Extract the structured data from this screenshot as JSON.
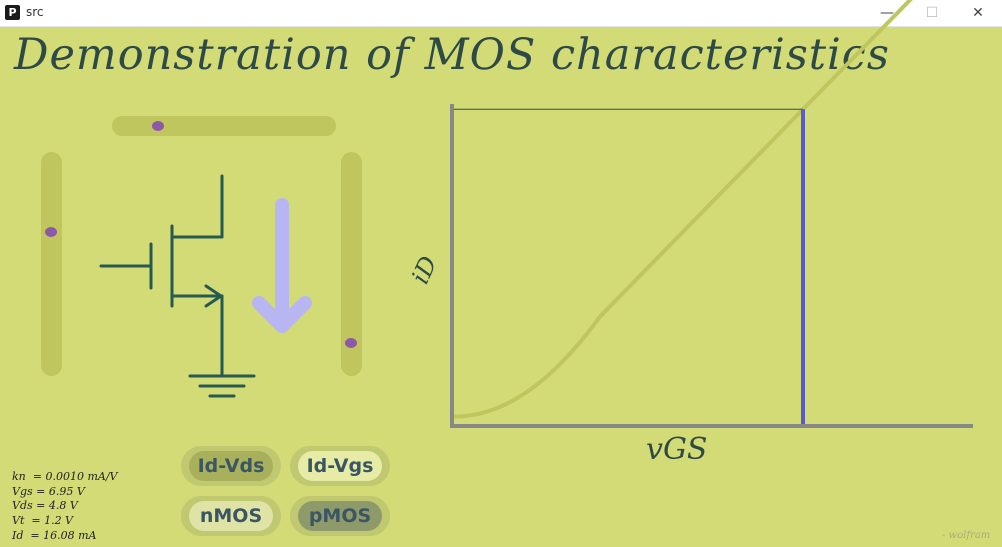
{
  "window": {
    "app_icon_letter": "P",
    "title": "src",
    "minimize_glyph": "—",
    "maximize_glyph": "☐",
    "close_glyph": "✕"
  },
  "main_title": "Demonstration of MOS characteristics",
  "sliders": {
    "gate_slider_level": 0.34,
    "left_slider_level": 0.34,
    "right_slider_level": 0.15
  },
  "parameters": [
    "kn  = 0.0010 mA/V",
    "Vgs = 6.95 V",
    "Vds = 4.8 V",
    "Vt  = 1.2 V",
    "Id  = 16.08 mA"
  ],
  "buttons": {
    "id_vds": "Id-Vds",
    "id_vgs": "Id-Vgs",
    "nmos": "nMOS",
    "pmos": "pMOS"
  },
  "plot": {
    "ylabel": "iD",
    "xlabel": "vGS"
  },
  "credit": "- wolfram",
  "colors": {
    "background": "#d3db77",
    "curve": "#c0c65e",
    "marker": "#5a5ac8",
    "current_arrow": "#b7b6f2",
    "circuit": "#265a50",
    "axes": "#888888"
  }
}
